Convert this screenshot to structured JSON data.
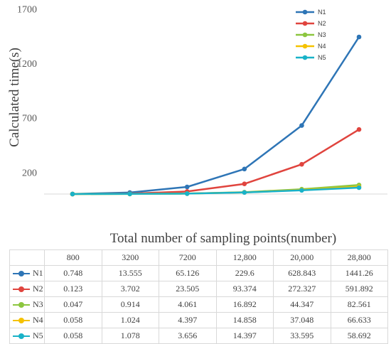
{
  "chart_data": {
    "type": "line",
    "xlabel": "Total number of sampling points(number)",
    "ylabel": "Calculated time(s)",
    "categories": [
      "800",
      "3200",
      "7200",
      "12,800",
      "20,000",
      "28,800"
    ],
    "y_ticks": [
      "200",
      "700",
      "1200",
      "1700"
    ],
    "ylim": [
      0,
      1700
    ],
    "legend_position": "top-right",
    "grid": false,
    "series": [
      {
        "name": "N1",
        "color": "#2e75b6",
        "values": [
          0.748,
          13.555,
          65.126,
          229.6,
          628.843,
          1441.26
        ],
        "labels": [
          "0.748",
          "13.555",
          "65.126",
          "229.6",
          "628.843",
          "1441.26"
        ]
      },
      {
        "name": "N2",
        "color": "#e0443e",
        "values": [
          0.123,
          3.702,
          23.505,
          93.374,
          272.327,
          591.892
        ],
        "labels": [
          "0.123",
          "3.702",
          "23.505",
          "93.374",
          "272.327",
          "591.892"
        ]
      },
      {
        "name": "N3",
        "color": "#8cc63f",
        "values": [
          0.047,
          0.914,
          4.061,
          16.892,
          44.347,
          82.561
        ],
        "labels": [
          "0.047",
          "0.914",
          "4.061",
          "16.892",
          "44.347",
          "82.561"
        ]
      },
      {
        "name": "N4",
        "color": "#f5c200",
        "values": [
          0.058,
          1.024,
          4.397,
          14.858,
          37.048,
          66.633
        ],
        "labels": [
          "0.058",
          "1.024",
          "4.397",
          "14.858",
          "37.048",
          "66.633"
        ]
      },
      {
        "name": "N5",
        "color": "#19b2c8",
        "values": [
          0.058,
          1.078,
          3.656,
          14.397,
          33.595,
          58.692
        ],
        "labels": [
          "0.058",
          "1.078",
          "3.656",
          "14.397",
          "33.595",
          "58.692"
        ]
      }
    ]
  }
}
